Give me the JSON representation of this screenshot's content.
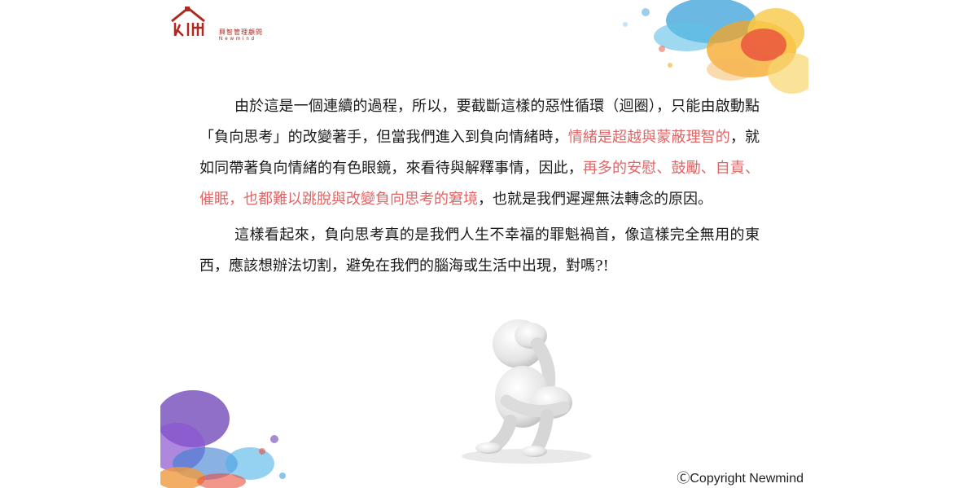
{
  "logo": {
    "brand_cn": "興智管理顧問",
    "brand_en": "Newmind",
    "brand_color": "#b0281e"
  },
  "content": {
    "p1": {
      "s1": "由於這是一個連續的過程，所以，要截斷這樣的惡性循環（迴圈），只能由啟動點「負向思考」的改變著手，但當我們進入到負向情緒時，",
      "r1": "情緒是超越與蒙蔽理智的",
      "s2": "，就如同帶著負向情緒的有色眼鏡，來看待與解釋事情，因此，",
      "r2": "再多的安慰、鼓勵、自責、催眠，也都難以跳脫與改變負向思考的窘境",
      "s3": "，也就是我們遲遲無法轉念的原因。"
    },
    "p2": "這樣看起來，負向思考真的是我們人生不幸福的罪魁禍首，像這樣完全無用的東西，應該想辦法切割，避免在我們的腦海或生活中出現，對嗎?!"
  },
  "colors": {
    "highlight": "#e06666",
    "body_text": "#1a1a1a"
  },
  "footer": {
    "copyright": "ⒸCopyright Newmind"
  }
}
